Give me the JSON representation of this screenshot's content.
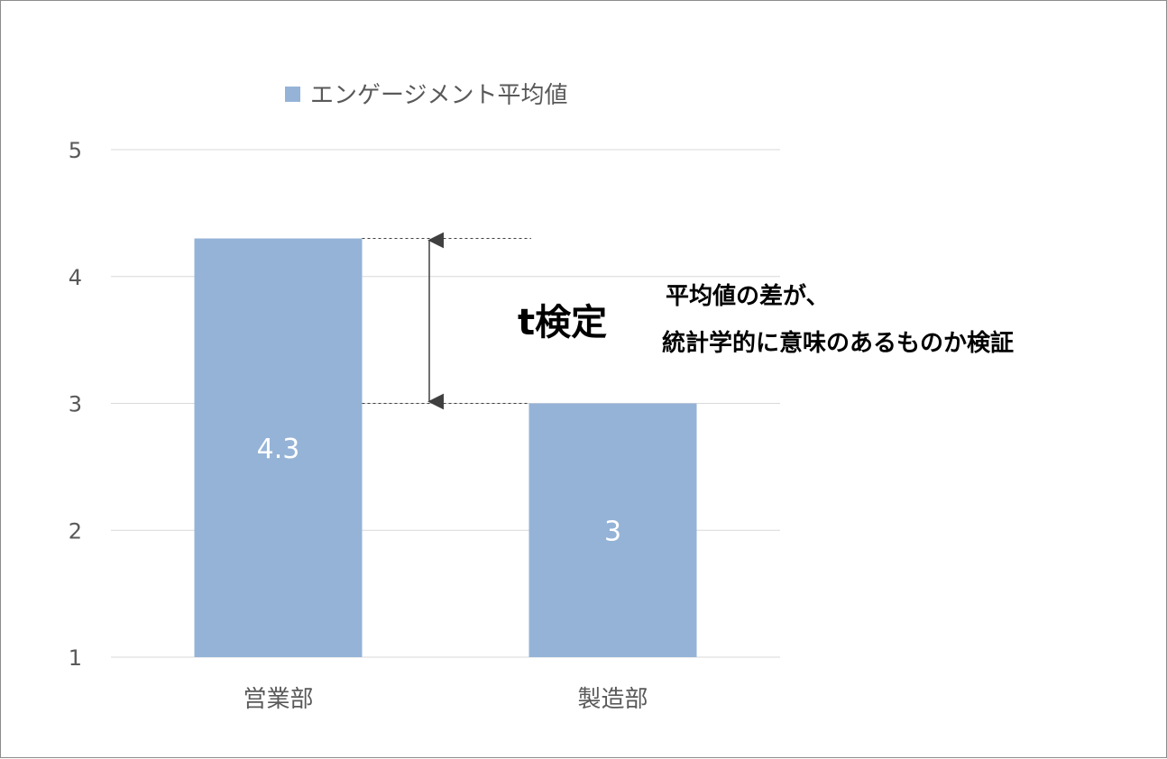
{
  "chart_data": {
    "type": "bar",
    "categories": [
      "営業部",
      "製造部"
    ],
    "series": [
      {
        "name": "エンゲージメント平均値",
        "values": [
          4.3,
          3
        ]
      }
    ],
    "data_labels": [
      "4.3",
      "3"
    ],
    "ylim": [
      1,
      5
    ],
    "yticks": [
      "1",
      "2",
      "3",
      "4",
      "5"
    ],
    "grid": true,
    "legend_position": "top-left",
    "color": "#95b3d7",
    "annotations": {
      "ttest": "t検定",
      "note_line1": "平均値の差が、",
      "note_line2": "統計学的に意味のあるものか検証"
    }
  }
}
